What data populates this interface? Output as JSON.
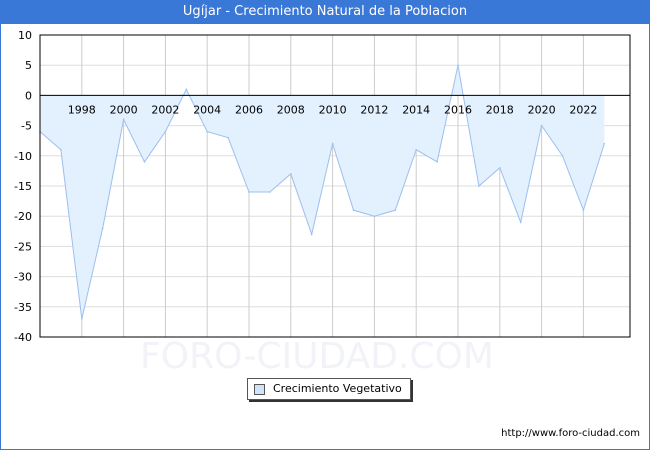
{
  "chart_data": {
    "type": "area",
    "title": "Ugíjar - Crecimiento Natural de la Poblacion",
    "x": [
      1996,
      1997,
      1998,
      1999,
      2000,
      2001,
      2002,
      2003,
      2004,
      2005,
      2006,
      2007,
      2008,
      2009,
      2010,
      2011,
      2012,
      2013,
      2014,
      2015,
      2016,
      2017,
      2018,
      2019,
      2020,
      2021,
      2022,
      2023
    ],
    "series": [
      {
        "name": "Crecimiento Vegetativo",
        "values": [
          -6,
          -9,
          -37,
          -22,
          -4,
          -11,
          -6,
          1,
          -6,
          -7,
          -16,
          -16,
          -13,
          -23,
          -8,
          -19,
          -20,
          -19,
          -9,
          -11,
          5,
          -15,
          -12,
          -21,
          -5,
          -10,
          -19,
          -8
        ]
      }
    ],
    "xticks": [
      "1998",
      "2000",
      "2002",
      "2004",
      "2006",
      "2008",
      "2010",
      "2012",
      "2014",
      "2016",
      "2018",
      "2020",
      "2022"
    ],
    "yticks": [
      "10",
      "5",
      "0",
      "-5",
      "-10",
      "-15",
      "-20",
      "-25",
      "-30",
      "-35",
      "-40"
    ],
    "ylim": [
      -40,
      10
    ],
    "xlabel": "",
    "ylabel": "",
    "grid": true,
    "legend_position": "bottom-center",
    "colors": {
      "line": "#9dbfee",
      "fill": "#e3f0fd",
      "header": "#3a78d8"
    }
  },
  "watermark": "FORO-CIUDAD.COM",
  "source_url": "http://www.foro-ciudad.com"
}
